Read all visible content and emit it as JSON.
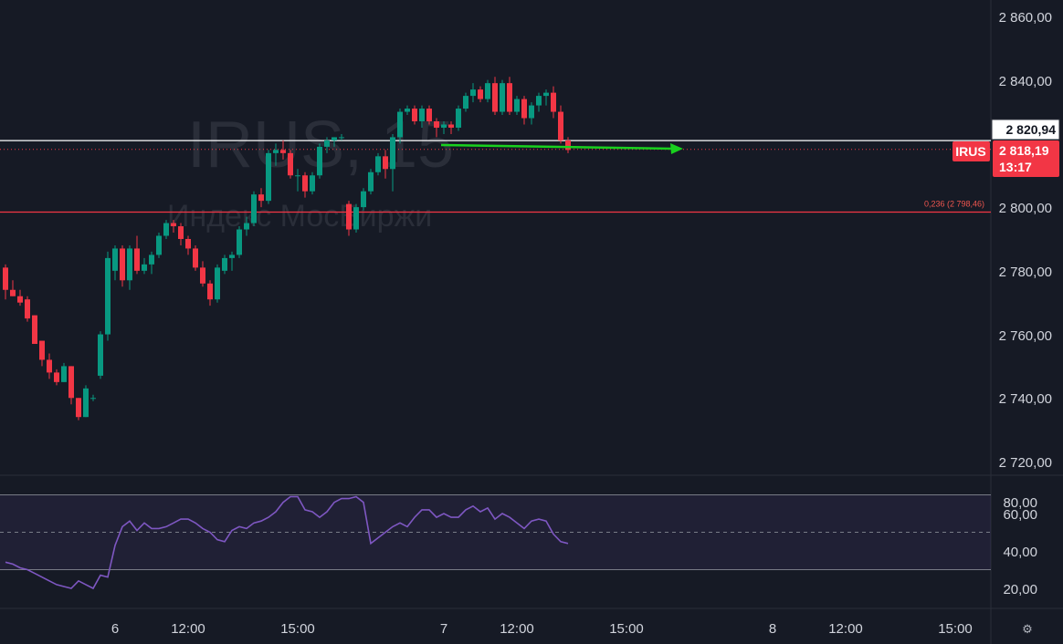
{
  "watermark": {
    "symbol": "IRUS, 15",
    "name": "Индекс МосБиржи"
  },
  "colors": {
    "background": "#161a25",
    "up": "#089981",
    "down": "#f23645",
    "rsi": "#7e57c2",
    "arrow": "#19d11e",
    "fib": "#f0564f"
  },
  "price_axis": {
    "ticks": [
      "2 860,00",
      "2 840,00",
      "2 820,00",
      "2 800,00",
      "2 780,00",
      "2 760,00",
      "2 740,00",
      "2 720,00"
    ]
  },
  "labels": {
    "white_line_value": "2 820,94",
    "symbol_badge": "IRUS",
    "last_price": "2 818,19",
    "countdown": "13:17",
    "fib_label": "0,236 (2 798,46)"
  },
  "rsi_axis": {
    "ticks": [
      "80,00",
      "60,00",
      "40,00",
      "20,00"
    ]
  },
  "time_axis": {
    "ticks": [
      "6",
      "12:00",
      "15:00",
      "7",
      "12:00",
      "15:00",
      "8",
      "12:00",
      "15:00"
    ]
  },
  "settings_icon": "gear-icon",
  "chart_data": [
    {
      "type": "candlestick",
      "symbol": "IRUS",
      "interval": "15",
      "ylim": [
        2715,
        2866
      ],
      "horizontal_lines": [
        2820.94,
        2798.46
      ],
      "last_price": 2818.19,
      "candles": [
        [
          2781,
          2782,
          2771,
          2774
        ],
        [
          2774,
          2777,
          2772,
          2772
        ],
        [
          2772,
          2774,
          2769,
          2770
        ],
        [
          2771,
          2772,
          2764,
          2765
        ],
        [
          2766,
          2766,
          2757,
          2757
        ],
        [
          2758,
          2758,
          2750,
          2752
        ],
        [
          2752,
          2754,
          2746,
          2748
        ],
        [
          2748,
          2749,
          2744,
          2745
        ],
        [
          2745,
          2751,
          2745,
          2750
        ],
        [
          2750,
          2750,
          2738,
          2740
        ],
        [
          2740,
          2740,
          2733,
          2734
        ],
        [
          2734,
          2744,
          2734,
          2743
        ],
        [
          2740,
          2741,
          2739,
          2740
        ],
        [
          2747,
          2761,
          2746,
          2760
        ],
        [
          2760,
          2786,
          2758,
          2784
        ],
        [
          2780,
          2788,
          2777,
          2787
        ],
        [
          2787,
          2788,
          2775,
          2777
        ],
        [
          2777,
          2788,
          2774,
          2787
        ],
        [
          2787,
          2791,
          2779,
          2780
        ],
        [
          2780,
          2784,
          2779,
          2782
        ],
        [
          2782,
          2786,
          2779,
          2785
        ],
        [
          2785,
          2792,
          2784,
          2791
        ],
        [
          2791,
          2796,
          2790,
          2795
        ],
        [
          2795,
          2796,
          2792,
          2794
        ],
        [
          2794,
          2795,
          2788,
          2790
        ],
        [
          2790,
          2791,
          2785,
          2787
        ],
        [
          2787,
          2788,
          2780,
          2781
        ],
        [
          2781,
          2783,
          2775,
          2776
        ],
        [
          2776,
          2777,
          2769,
          2771
        ],
        [
          2771,
          2782,
          2770,
          2781
        ],
        [
          2780,
          2785,
          2779,
          2784
        ],
        [
          2784,
          2786,
          2780,
          2785
        ],
        [
          2785,
          2794,
          2784,
          2793
        ],
        [
          2793,
          2797,
          2791,
          2795
        ],
        [
          2795,
          2805,
          2794,
          2804
        ],
        [
          2804,
          2806,
          2800,
          2802
        ],
        [
          2802,
          2818,
          2801,
          2817
        ],
        [
          2817,
          2820,
          2813,
          2818
        ],
        [
          2818,
          2821,
          2815,
          2817
        ],
        [
          2817,
          2818,
          2809,
          2810
        ],
        [
          2810,
          2812,
          2805,
          2810
        ],
        [
          2810,
          2811,
          2803,
          2805
        ],
        [
          2805,
          2811,
          2804,
          2810
        ],
        [
          2810,
          2820,
          2809,
          2819
        ],
        [
          2819,
          2822,
          2817,
          2821
        ],
        [
          2821,
          2822,
          2819,
          2822
        ],
        [
          2822,
          2823,
          2821,
          2822
        ],
        [
          2801,
          2802,
          2791,
          2793
        ],
        [
          2793,
          2801,
          2792,
          2800
        ],
        [
          2800,
          2806,
          2799,
          2805
        ],
        [
          2805,
          2812,
          2804,
          2811
        ],
        [
          2811,
          2817,
          2810,
          2816
        ],
        [
          2816,
          2818,
          2809,
          2812
        ],
        [
          2812,
          2823,
          2805,
          2822
        ],
        [
          2822,
          2831,
          2820,
          2830
        ],
        [
          2830,
          2832,
          2829,
          2831
        ],
        [
          2831,
          2832,
          2826,
          2827
        ],
        [
          2827,
          2832,
          2825,
          2831
        ],
        [
          2831,
          2832,
          2826,
          2827
        ],
        [
          2827,
          2828,
          2822,
          2825
        ],
        [
          2825,
          2827,
          2823,
          2826
        ],
        [
          2826,
          2827,
          2823,
          2825
        ],
        [
          2825,
          2832,
          2824,
          2831
        ],
        [
          2831,
          2836,
          2830,
          2835
        ],
        [
          2835,
          2839,
          2833,
          2837
        ],
        [
          2837,
          2838,
          2833,
          2834
        ],
        [
          2834,
          2840,
          2833,
          2839
        ],
        [
          2839,
          2841,
          2829,
          2830
        ],
        [
          2830,
          2840,
          2829,
          2839
        ],
        [
          2839,
          2841,
          2829,
          2830
        ],
        [
          2830,
          2835,
          2829,
          2834
        ],
        [
          2834,
          2835,
          2826,
          2828
        ],
        [
          2828,
          2833,
          2826,
          2832
        ],
        [
          2832,
          2836,
          2830,
          2835
        ],
        [
          2835,
          2837,
          2832,
          2836
        ],
        [
          2836,
          2838,
          2828,
          2830
        ],
        [
          2830,
          2832,
          2820,
          2821
        ],
        [
          2821,
          2822,
          2817,
          2818
        ]
      ]
    },
    {
      "type": "line",
      "series": "RSI",
      "ylim": [
        13.5,
        80
      ],
      "bands": [
        30,
        50,
        70
      ],
      "values": [
        34,
        33,
        31,
        30,
        28,
        26,
        24,
        22,
        21,
        20,
        24,
        22,
        20,
        27,
        26,
        43,
        53,
        56,
        51,
        55,
        52,
        52,
        53,
        55,
        57,
        57,
        55,
        52,
        50,
        46,
        45,
        51,
        53,
        52,
        55,
        56,
        58,
        61,
        66,
        69,
        69,
        62,
        61,
        58,
        61,
        66,
        68,
        68,
        69,
        66,
        44,
        47,
        50,
        53,
        55,
        53,
        58,
        62,
        62,
        58,
        60,
        58,
        58,
        62,
        64,
        61,
        63,
        57,
        60,
        58,
        55,
        52,
        56,
        57,
        56,
        49,
        45,
        44
      ]
    }
  ]
}
